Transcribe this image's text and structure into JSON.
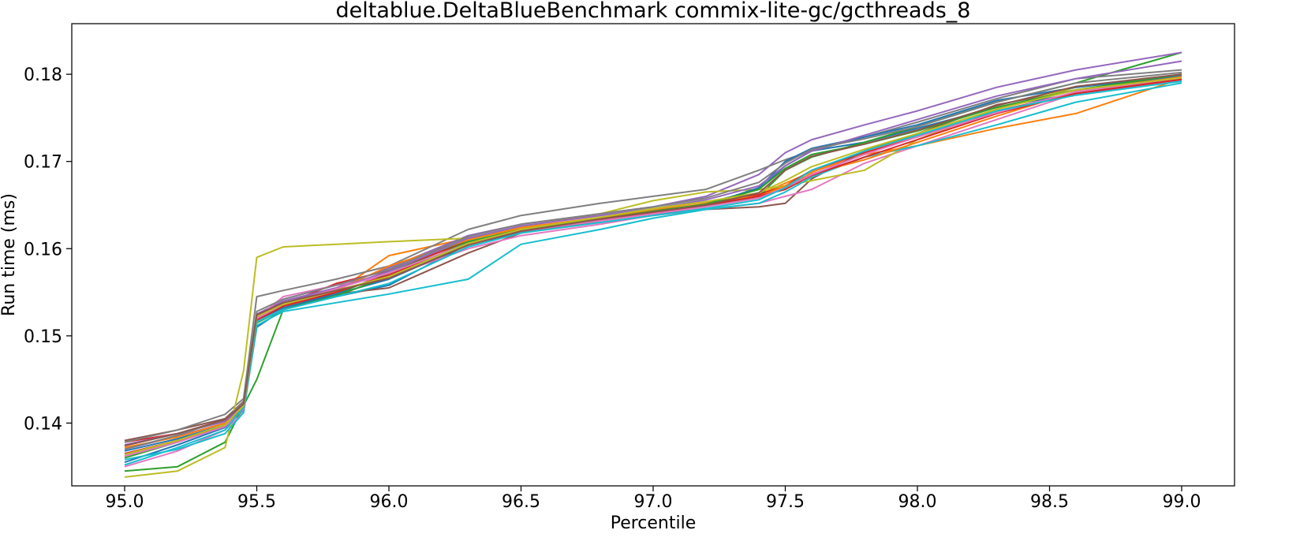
{
  "chart_data": {
    "type": "line",
    "title": "deltablue.DeltaBlueBenchmark commix-lite-gc/gcthreads_8",
    "xlabel": "Percentile",
    "ylabel": "Run time (ms)",
    "xlim": [
      94.8,
      99.2
    ],
    "ylim": [
      0.1328,
      0.1858
    ],
    "xticks": [
      95.0,
      95.5,
      96.0,
      96.5,
      97.0,
      97.5,
      98.0,
      98.5,
      99.0
    ],
    "xtick_labels": [
      "95.0",
      "95.5",
      "96.0",
      "96.5",
      "97.0",
      "97.5",
      "98.0",
      "98.5",
      "99.0"
    ],
    "yticks": [
      0.14,
      0.15,
      0.16,
      0.17,
      0.18
    ],
    "ytick_labels": [
      "0.14",
      "0.15",
      "0.16",
      "0.17",
      "0.18"
    ],
    "grid": false,
    "legend": "none",
    "x": [
      95.0,
      95.2,
      95.38,
      95.45,
      95.5,
      95.6,
      95.8,
      96.0,
      96.3,
      96.5,
      96.8,
      97.0,
      97.2,
      97.4,
      97.5,
      97.6,
      97.8,
      98.0,
      98.3,
      98.6,
      99.0
    ],
    "series": [
      {
        "color": "#1f77b4",
        "values": [
          0.1355,
          0.1375,
          0.1395,
          0.1415,
          0.151,
          0.153,
          0.1545,
          0.1558,
          0.1605,
          0.1618,
          0.1632,
          0.164,
          0.1652,
          0.1668,
          0.1695,
          0.1712,
          0.1722,
          0.1738,
          0.1762,
          0.1778,
          0.1792
        ]
      },
      {
        "color": "#ff7f0e",
        "values": [
          0.1362,
          0.138,
          0.1398,
          0.1425,
          0.152,
          0.1532,
          0.155,
          0.1592,
          0.1612,
          0.1622,
          0.1635,
          0.1642,
          0.1652,
          0.1662,
          0.1675,
          0.1688,
          0.1708,
          0.1718,
          0.1738,
          0.1755,
          0.1795
        ]
      },
      {
        "color": "#2ca02c",
        "values": [
          0.1345,
          0.135,
          0.1378,
          0.142,
          0.145,
          0.153,
          0.1548,
          0.1572,
          0.161,
          0.1625,
          0.1632,
          0.164,
          0.1648,
          0.166,
          0.169,
          0.1705,
          0.1722,
          0.174,
          0.1768,
          0.179,
          0.1825
        ]
      },
      {
        "color": "#d62728",
        "values": [
          0.1378,
          0.1388,
          0.1402,
          0.142,
          0.152,
          0.1536,
          0.156,
          0.1575,
          0.1608,
          0.162,
          0.1634,
          0.1642,
          0.165,
          0.1662,
          0.1672,
          0.169,
          0.171,
          0.1728,
          0.1758,
          0.1778,
          0.1795
        ]
      },
      {
        "color": "#9467bd",
        "values": [
          0.137,
          0.1385,
          0.14,
          0.1418,
          0.1525,
          0.154,
          0.1555,
          0.1578,
          0.1615,
          0.1628,
          0.164,
          0.1648,
          0.166,
          0.1685,
          0.171,
          0.1725,
          0.1742,
          0.1758,
          0.1785,
          0.1805,
          0.1825
        ]
      },
      {
        "color": "#8c564b",
        "values": [
          0.138,
          0.1392,
          0.1405,
          0.1425,
          0.1522,
          0.1535,
          0.1548,
          0.1555,
          0.1595,
          0.1618,
          0.1632,
          0.164,
          0.1645,
          0.1648,
          0.1652,
          0.168,
          0.1712,
          0.1732,
          0.1765,
          0.1782,
          0.1798
        ]
      },
      {
        "color": "#e377c2",
        "values": [
          0.135,
          0.1368,
          0.1392,
          0.1412,
          0.152,
          0.1545,
          0.1558,
          0.1568,
          0.16,
          0.1615,
          0.1628,
          0.1638,
          0.1645,
          0.1652,
          0.166,
          0.1668,
          0.1698,
          0.1718,
          0.1748,
          0.1778,
          0.1793
        ]
      },
      {
        "color": "#7f7f7f",
        "values": [
          0.1378,
          0.1392,
          0.141,
          0.1428,
          0.1545,
          0.1552,
          0.1565,
          0.158,
          0.1622,
          0.1638,
          0.1652,
          0.166,
          0.1668,
          0.169,
          0.1702,
          0.1712,
          0.1728,
          0.1745,
          0.1772,
          0.1795,
          0.1805
        ]
      },
      {
        "color": "#bcbd22",
        "values": [
          0.1338,
          0.1345,
          0.1372,
          0.146,
          0.159,
          0.1602,
          0.1605,
          0.1608,
          0.1612,
          0.1625,
          0.164,
          0.1655,
          0.1665,
          0.1668,
          0.1672,
          0.1678,
          0.169,
          0.1725,
          0.176,
          0.1785,
          0.1798
        ]
      },
      {
        "color": "#17becf",
        "values": [
          0.1358,
          0.137,
          0.1388,
          0.1412,
          0.1512,
          0.1528,
          0.1538,
          0.1548,
          0.1565,
          0.1605,
          0.1622,
          0.1635,
          0.1645,
          0.1652,
          0.1665,
          0.1682,
          0.1705,
          0.1718,
          0.1742,
          0.1768,
          0.179
        ]
      },
      {
        "color": "#1f77b4",
        "values": [
          0.1368,
          0.1382,
          0.1398,
          0.1418,
          0.1518,
          0.1532,
          0.1548,
          0.1565,
          0.1605,
          0.162,
          0.1633,
          0.1642,
          0.165,
          0.167,
          0.17,
          0.1715,
          0.1728,
          0.1742,
          0.177,
          0.1785,
          0.1798
        ]
      },
      {
        "color": "#ff7f0e",
        "values": [
          0.1372,
          0.1384,
          0.14,
          0.1422,
          0.1522,
          0.1536,
          0.1552,
          0.158,
          0.161,
          0.1624,
          0.1636,
          0.1644,
          0.1654,
          0.166,
          0.1672,
          0.1686,
          0.1702,
          0.1722,
          0.1752,
          0.178,
          0.1797
        ]
      },
      {
        "color": "#2ca02c",
        "values": [
          0.136,
          0.1378,
          0.1398,
          0.142,
          0.1515,
          0.153,
          0.1546,
          0.1568,
          0.1608,
          0.1622,
          0.1634,
          0.1643,
          0.1651,
          0.1668,
          0.1692,
          0.1708,
          0.172,
          0.1735,
          0.1762,
          0.1782,
          0.18
        ]
      },
      {
        "color": "#d62728",
        "values": [
          0.1365,
          0.138,
          0.1396,
          0.1416,
          0.1518,
          0.1534,
          0.155,
          0.157,
          0.1606,
          0.162,
          0.1633,
          0.1641,
          0.165,
          0.166,
          0.1668,
          0.1684,
          0.1705,
          0.1725,
          0.1755,
          0.1778,
          0.1794
        ]
      },
      {
        "color": "#9467bd",
        "values": [
          0.1375,
          0.1388,
          0.1402,
          0.142,
          0.1524,
          0.1538,
          0.1554,
          0.1574,
          0.1612,
          0.1626,
          0.1638,
          0.1646,
          0.1656,
          0.1672,
          0.1695,
          0.1712,
          0.173,
          0.1748,
          0.1775,
          0.1795,
          0.1815
        ]
      },
      {
        "color": "#7f7f7f",
        "values": [
          0.137,
          0.1386,
          0.1404,
          0.1424,
          0.1528,
          0.1542,
          0.1558,
          0.1576,
          0.1614,
          0.1628,
          0.164,
          0.1648,
          0.1658,
          0.1676,
          0.1698,
          0.1714,
          0.1726,
          0.174,
          0.1768,
          0.179,
          0.1802
        ]
      },
      {
        "color": "#e377c2",
        "values": [
          0.1362,
          0.1378,
          0.1396,
          0.1416,
          0.152,
          0.1536,
          0.1554,
          0.1572,
          0.1606,
          0.162,
          0.1632,
          0.164,
          0.1648,
          0.1658,
          0.167,
          0.1685,
          0.1708,
          0.1728,
          0.1756,
          0.178,
          0.1796
        ]
      },
      {
        "color": "#17becf",
        "values": [
          0.1352,
          0.1372,
          0.1392,
          0.1418,
          0.1516,
          0.153,
          0.1545,
          0.156,
          0.1602,
          0.1618,
          0.163,
          0.1638,
          0.1646,
          0.1656,
          0.167,
          0.169,
          0.1712,
          0.173,
          0.1758,
          0.1776,
          0.1792
        ]
      },
      {
        "color": "#bcbd22",
        "values": [
          0.1364,
          0.138,
          0.1398,
          0.142,
          0.1522,
          0.1536,
          0.1552,
          0.1568,
          0.1606,
          0.1622,
          0.1636,
          0.1646,
          0.1654,
          0.1664,
          0.1678,
          0.1694,
          0.1714,
          0.1732,
          0.176,
          0.1782,
          0.1796
        ]
      },
      {
        "color": "#8c564b",
        "values": [
          0.1374,
          0.1388,
          0.1404,
          0.1422,
          0.1524,
          0.1538,
          0.1552,
          0.1566,
          0.1604,
          0.162,
          0.1634,
          0.1642,
          0.165,
          0.1664,
          0.169,
          0.1706,
          0.172,
          0.1736,
          0.1764,
          0.1786,
          0.18
        ]
      }
    ]
  }
}
